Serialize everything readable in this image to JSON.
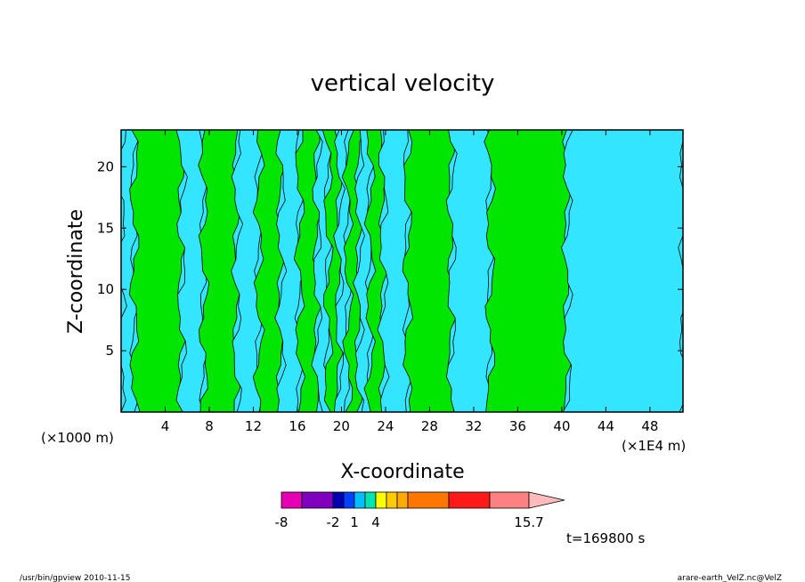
{
  "chart_data": {
    "type": "heatmap",
    "title": "vertical velocity",
    "xlabel": "X-coordinate",
    "ylabel": "Z-coordinate",
    "x_unit_left": "(×1000 m)",
    "x_unit_right": "(×1E4 m)",
    "xlim": [
      0,
      51
    ],
    "ylim": [
      0,
      23
    ],
    "x_ticks": [
      "4",
      "8",
      "12",
      "16",
      "20",
      "24",
      "28",
      "32",
      "36",
      "40",
      "44",
      "48"
    ],
    "y_ticks": [
      "5",
      "10",
      "15",
      "20"
    ],
    "field_colors": {
      "negative": "#33e5ff",
      "positive": "#00e600",
      "contour": "#000000"
    },
    "bands": [
      {
        "x0": 0,
        "x1": 1.2,
        "sign": "negative"
      },
      {
        "x0": 1.2,
        "x1": 5.5,
        "sign": "positive"
      },
      {
        "x0": 5.5,
        "x1": 7.5,
        "sign": "negative"
      },
      {
        "x0": 7.5,
        "x1": 10.5,
        "sign": "positive"
      },
      {
        "x0": 10.5,
        "x1": 12.5,
        "sign": "negative"
      },
      {
        "x0": 12.5,
        "x1": 14.5,
        "sign": "positive"
      },
      {
        "x0": 14.5,
        "x1": 16.2,
        "sign": "negative"
      },
      {
        "x0": 16.2,
        "x1": 17.8,
        "sign": "positive"
      },
      {
        "x0": 17.8,
        "x1": 18.8,
        "sign": "negative"
      },
      {
        "x0": 18.8,
        "x1": 19.8,
        "sign": "positive"
      },
      {
        "x0": 19.8,
        "x1": 20.6,
        "sign": "negative"
      },
      {
        "x0": 20.6,
        "x1": 21.6,
        "sign": "positive"
      },
      {
        "x0": 21.6,
        "x1": 22.6,
        "sign": "negative"
      },
      {
        "x0": 22.6,
        "x1": 23.8,
        "sign": "positive"
      },
      {
        "x0": 23.8,
        "x1": 26.0,
        "sign": "negative"
      },
      {
        "x0": 26.0,
        "x1": 30.0,
        "sign": "positive"
      },
      {
        "x0": 30.0,
        "x1": 33.5,
        "sign": "negative"
      },
      {
        "x0": 33.5,
        "x1": 40.5,
        "sign": "positive"
      },
      {
        "x0": 40.5,
        "x1": 51,
        "sign": "negative"
      }
    ],
    "colorbar": {
      "colors": [
        "#e600b3",
        "#8000c0",
        "#0000b3",
        "#0040ff",
        "#00c0ff",
        "#00e5b0",
        "#ffff00",
        "#ffcc00",
        "#ffaa00",
        "#ff7700",
        "#ff1a1a",
        "#ff8080",
        "#ffbbbb"
      ],
      "tick_labels": [
        "-8",
        "-2",
        "1",
        "4",
        "15.7"
      ]
    },
    "time_label": "t=169800 s"
  },
  "footer": {
    "left": "/usr/bin/gpview   2010-11-15",
    "right": "arare-earth_VelZ.nc@VelZ"
  }
}
